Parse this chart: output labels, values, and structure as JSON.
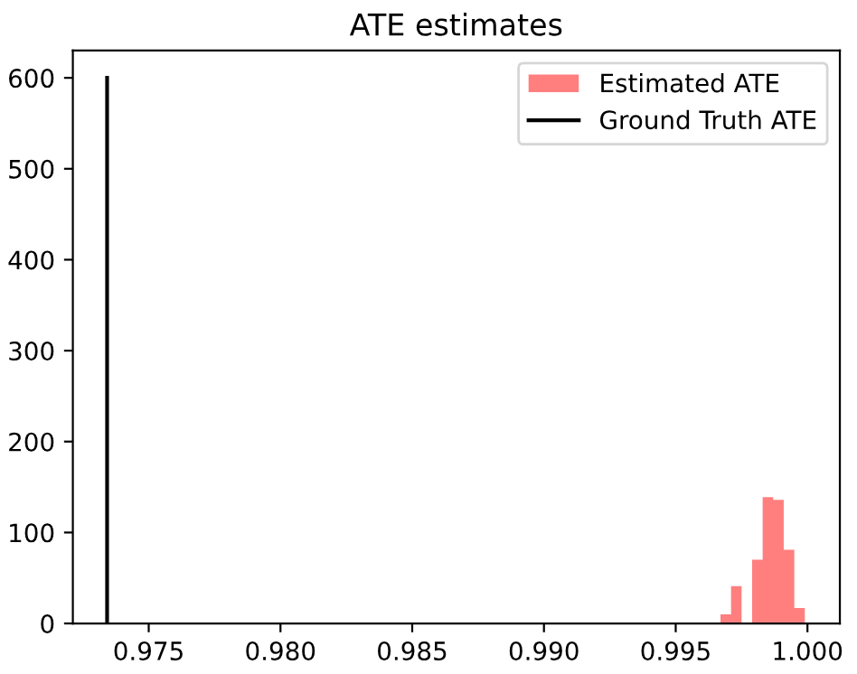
{
  "chart_data": {
    "type": "histogram",
    "title": "ATE estimates",
    "series": [
      {
        "name": "Estimated ATE",
        "color": "#ff7f7f",
        "bins": [
          0.9967,
          0.9971,
          0.9975,
          0.9979,
          0.9983,
          0.9987,
          0.9991,
          0.9995,
          0.9999
        ],
        "values": [
          10,
          41,
          0,
          70,
          139,
          136,
          81,
          17
        ]
      },
      {
        "type": "line",
        "name": "Ground Truth ATE",
        "color": "#000000",
        "x": [
          0.97342,
          0.97342
        ],
        "values": [
          0,
          600
        ]
      }
    ],
    "xlim": [
      0.97212,
      1.00123
    ],
    "ylim": [
      0,
      630
    ],
    "xticks": [
      {
        "value": 0.975,
        "label": "0.975"
      },
      {
        "value": 0.98,
        "label": "0.980"
      },
      {
        "value": 0.985,
        "label": "0.985"
      },
      {
        "value": 0.99,
        "label": "0.990"
      },
      {
        "value": 0.995,
        "label": "0.995"
      },
      {
        "value": 1.0,
        "label": "1.000"
      }
    ],
    "yticks": [
      0,
      100,
      200,
      300,
      400,
      500,
      600
    ],
    "legend": "top right",
    "grid": false
  }
}
